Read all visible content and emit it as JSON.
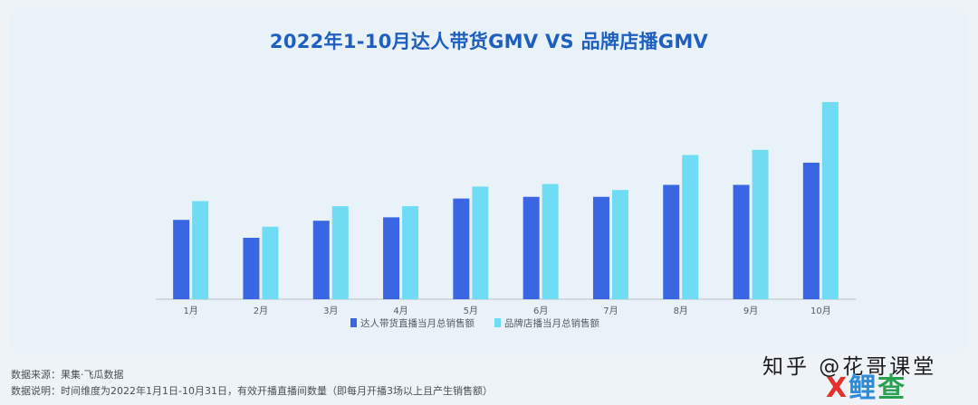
{
  "chart_data": {
    "type": "bar",
    "title": "2022年1-10月达人带货GMV VS 品牌店播GMV",
    "categories": [
      "1月",
      "2月",
      "3月",
      "4月",
      "5月",
      "6月",
      "7月",
      "8月",
      "9月",
      "10月"
    ],
    "series": [
      {
        "name": "达人带货直播当月总销售额",
        "values": [
          93,
          72,
          92,
          96,
          118,
          120,
          120,
          134,
          134,
          160
        ],
        "color": "#3b66e3"
      },
      {
        "name": "品牌店播当月总销售额",
        "values": [
          115,
          85,
          109,
          109,
          132,
          135,
          128,
          169,
          175,
          231
        ],
        "color": "#6fdcf3"
      }
    ],
    "ylim": [
      0,
      250
    ],
    "grid": false,
    "legend": "bottom"
  },
  "footer": {
    "source": "数据来源：果集·飞瓜数据",
    "note": "数据说明：时间维度为2022年1月1日-10月31日，有效开播直播间数量（即每月开播3场以上且产生销售额）"
  },
  "watermark": {
    "text": "知乎 @花哥课堂",
    "logo_x": "X",
    "logo_rest": "鲤",
    "logo_end": "查"
  }
}
